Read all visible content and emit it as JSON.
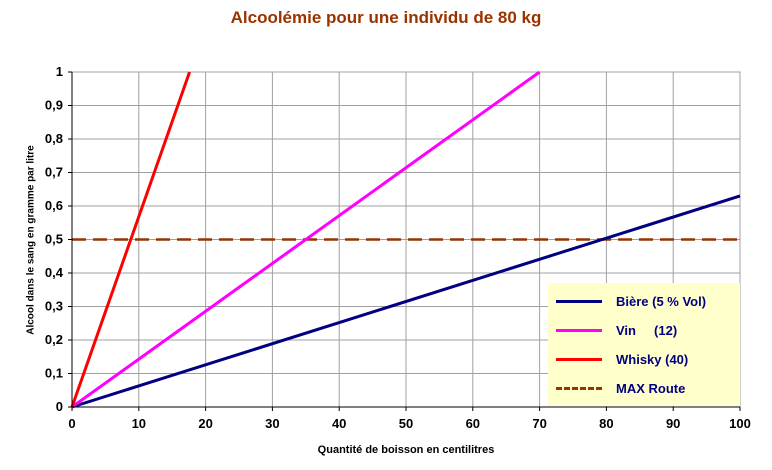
{
  "chart_data": {
    "type": "line",
    "title": "Alcoolémie pour une individu de 80 kg",
    "xlabel": "Quantité de boisson en centilitres",
    "ylabel": "Alcool dans le sang en gramme par litre",
    "xlim": [
      0,
      100
    ],
    "ylim": [
      0,
      1
    ],
    "x_ticks": [
      0,
      10,
      20,
      30,
      40,
      50,
      60,
      70,
      80,
      90,
      100
    ],
    "y_ticks": [
      "0",
      "0,1",
      "0,2",
      "0,3",
      "0,4",
      "0,5",
      "0,6",
      "0,7",
      "0,8",
      "0,9",
      "1"
    ],
    "grid": true,
    "legend_position": "bottom-right",
    "series": [
      {
        "name": "Bière (5 % Vol)",
        "color": "#000080",
        "style": "solid",
        "x": [
          0,
          100
        ],
        "y": [
          0,
          0.63
        ]
      },
      {
        "name": "Vin     (12)",
        "color": "#ff00ff",
        "style": "solid",
        "x": [
          0,
          70
        ],
        "y": [
          0,
          1.0
        ]
      },
      {
        "name": "Whisky (40)",
        "color": "#ff0000",
        "style": "solid",
        "x": [
          0,
          17.6
        ],
        "y": [
          0,
          1.0
        ]
      },
      {
        "name": "MAX Route",
        "color": "#993300",
        "style": "dashed",
        "x": [
          0,
          100
        ],
        "y": [
          0.5,
          0.5
        ]
      }
    ]
  }
}
